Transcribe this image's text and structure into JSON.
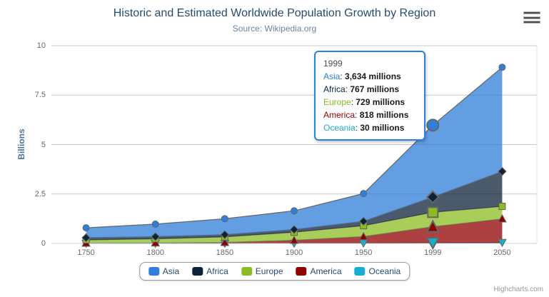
{
  "chart": {
    "title": "Historic and Estimated Worldwide Population Growth by Region",
    "subtitle": "Source: Wikipedia.org",
    "credits": "Highcharts.com"
  },
  "chart_data": {
    "type": "area",
    "stacking": "normal",
    "categories": [
      "1750",
      "1800",
      "1850",
      "1900",
      "1950",
      "1999",
      "2050"
    ],
    "unit": "millions",
    "series": [
      {
        "name": "Asia",
        "color": "#2f7ed8",
        "symbol": "circle",
        "values": [
          502,
          635,
          809,
          947,
          1402,
          3634,
          5268
        ]
      },
      {
        "name": "Africa",
        "color": "#0d233a",
        "symbol": "diamond",
        "values": [
          106,
          107,
          111,
          133,
          221,
          767,
          1766
        ]
      },
      {
        "name": "Europe",
        "color": "#8bbc21",
        "symbol": "square",
        "values": [
          163,
          203,
          276,
          408,
          547,
          729,
          628
        ]
      },
      {
        "name": "America",
        "color": "#910000",
        "symbol": "triangle",
        "values": [
          18,
          31,
          54,
          156,
          339,
          818,
          1201
        ]
      },
      {
        "name": "Oceania",
        "color": "#1aadce",
        "symbol": "triangle-down",
        "values": [
          2,
          2,
          2,
          6,
          13,
          30,
          46
        ]
      }
    ],
    "yAxis": {
      "title": "Billions",
      "ticks": [
        "0",
        "2.5",
        "5",
        "7.5",
        "10"
      ],
      "tick_values": [
        0,
        2.5,
        5,
        7.5,
        10
      ],
      "max": 10
    },
    "xAxis": {
      "labels": [
        "1750",
        "1800",
        "1850",
        "1900",
        "1950",
        "1999",
        "2050"
      ]
    },
    "hover_category_index": 5,
    "legend_position": "bottom-center",
    "grid": "horizontal",
    "style": {
      "line_color": "#666666",
      "fill_opacity": 0.75,
      "grid_color": "#c9c9c9",
      "axis_line_color": "#c0d0e0",
      "plot_right_border_color": "#e6e6e6"
    }
  },
  "tooltip": {
    "header": "1999",
    "separator": ": ",
    "rows": [
      {
        "name": "Asia",
        "color": "#2f7ed8",
        "value": "3,634 millions"
      },
      {
        "name": "Africa",
        "color": "#0d233a",
        "value": "767 millions"
      },
      {
        "name": "Europe",
        "color": "#8bbc21",
        "value": "729 millions"
      },
      {
        "name": "America",
        "color": "#910000",
        "value": "818 millions"
      },
      {
        "name": "Oceania",
        "color": "#1aadce",
        "value": "30 millions"
      }
    ]
  },
  "legend": {
    "items": [
      {
        "label": "Asia",
        "color": "#2f7ed8"
      },
      {
        "label": "Africa",
        "color": "#0d233a"
      },
      {
        "label": "Europe",
        "color": "#8bbc21"
      },
      {
        "label": "America",
        "color": "#910000"
      },
      {
        "label": "Oceania",
        "color": "#1aadce"
      }
    ]
  }
}
